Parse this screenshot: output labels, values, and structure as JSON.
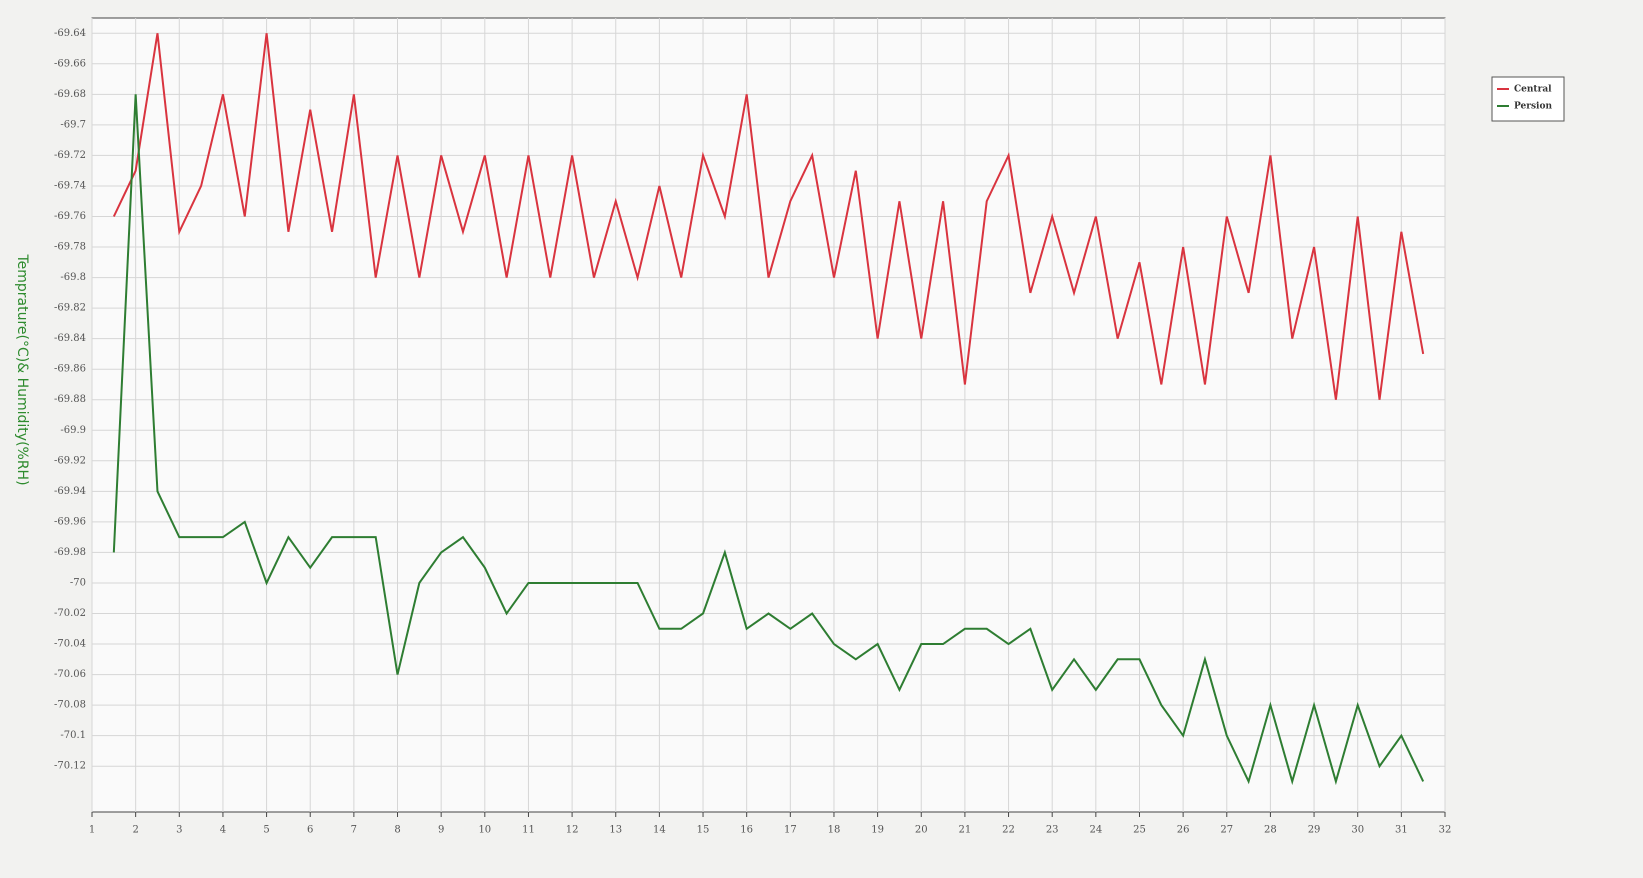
{
  "chart_data": {
    "type": "line",
    "y_label": "Temprature(°C)& Humidity(%RH)",
    "x": [
      1.5,
      2,
      2.5,
      3,
      3.5,
      4,
      4.5,
      5,
      5.5,
      6,
      6.5,
      7,
      7.5,
      8,
      8.5,
      9,
      9.5,
      10,
      10.5,
      11,
      11.5,
      12,
      12.5,
      13,
      13.5,
      14,
      14.5,
      15,
      15.5,
      16,
      16.5,
      17,
      17.5,
      18,
      18.5,
      19,
      19.5,
      20,
      20.5,
      21,
      21.5,
      22,
      22.5,
      23,
      23.5,
      24,
      24.5,
      25,
      25.5,
      26,
      26.5,
      27,
      27.5,
      28,
      28.5,
      29,
      29.5,
      30,
      30.5,
      31,
      31.5
    ],
    "series": [
      {
        "name": "Central",
        "color": "#d9343f",
        "values": [
          -69.76,
          -69.73,
          -69.64,
          -69.77,
          -69.74,
          -69.68,
          -69.76,
          -69.64,
          -69.77,
          -69.69,
          -69.77,
          -69.68,
          -69.8,
          -69.72,
          -69.8,
          -69.72,
          -69.77,
          -69.72,
          -69.8,
          -69.72,
          -69.8,
          -69.72,
          -69.8,
          -69.75,
          -69.8,
          -69.74,
          -69.8,
          -69.72,
          -69.76,
          -69.68,
          -69.8,
          -69.75,
          -69.72,
          -69.8,
          -69.73,
          -69.84,
          -69.75,
          -69.84,
          -69.75,
          -69.87,
          -69.75,
          -69.72,
          -69.81,
          -69.76,
          -69.81,
          -69.76,
          -69.84,
          -69.79,
          -69.87,
          -69.78,
          -69.87,
          -69.76,
          -69.81,
          -69.72,
          -69.84,
          -69.78,
          -69.88,
          -69.76,
          -69.88,
          -69.77,
          -69.85
        ]
      },
      {
        "name": "Persion",
        "color": "#2e7d32",
        "values": [
          -69.98,
          -69.68,
          -69.94,
          -69.97,
          -69.97,
          -69.97,
          -69.96,
          -70.0,
          -69.97,
          -69.99,
          -69.97,
          -69.97,
          -69.97,
          -70.06,
          -70.0,
          -69.98,
          -69.97,
          -69.99,
          -70.02,
          -70.0,
          -70.0,
          -70.0,
          -70.0,
          -70.0,
          -70.0,
          -70.03,
          -70.03,
          -70.02,
          -69.98,
          -70.03,
          -70.02,
          -70.03,
          -70.02,
          -70.04,
          -70.05,
          -70.04,
          -70.07,
          -70.04,
          -70.04,
          -70.03,
          -70.03,
          -70.04,
          -70.03,
          -70.07,
          -70.05,
          -70.07,
          -70.05,
          -70.05,
          -70.08,
          -70.1,
          -70.05,
          -70.1,
          -70.13,
          -70.08,
          -70.13,
          -70.08,
          -70.13,
          -70.08,
          -70.12,
          -70.1,
          -70.13
        ]
      }
    ],
    "xlim": [
      1,
      32
    ],
    "xticks": [
      1,
      2,
      3,
      4,
      5,
      6,
      7,
      8,
      9,
      10,
      11,
      12,
      13,
      14,
      15,
      16,
      17,
      18,
      19,
      20,
      21,
      22,
      23,
      24,
      25,
      26,
      27,
      28,
      29,
      30,
      31,
      32
    ],
    "ylim": [
      -70.15,
      -69.63
    ],
    "yticks": [
      -69.64,
      -69.66,
      -69.68,
      -69.7,
      -69.72,
      -69.74,
      -69.76,
      -69.78,
      -69.8,
      -69.82,
      -69.84,
      -69.86,
      -69.88,
      -69.9,
      -69.92,
      -69.94,
      -69.96,
      -69.98,
      -70,
      -70.02,
      -70.04,
      -70.06,
      -70.08,
      -70.1,
      -70.12
    ],
    "grid": true,
    "legend": "top-right"
  }
}
